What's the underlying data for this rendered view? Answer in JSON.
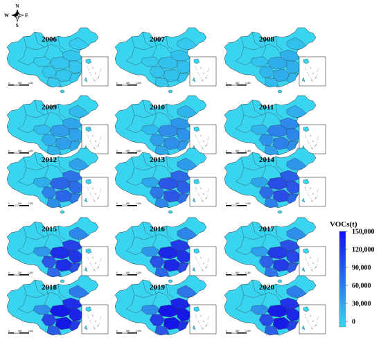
{
  "compass": {
    "north": "N",
    "south": "S",
    "east": "E",
    "west": "W"
  },
  "scale_bar_labels": [
    "0",
    "500",
    "1,000"
  ],
  "legend": {
    "title": "VOCs(t)",
    "ticks": [
      "150,000",
      "120,000",
      "90,000",
      "60,000",
      "30,000",
      "0"
    ],
    "color_low": "#38d4f0",
    "color_high": "#1212e8"
  },
  "colors": {
    "base": "#38d4f0",
    "light": "#2fb5ec",
    "mid": "#2e86ea",
    "dark": "#2a4fe6",
    "darkest": "#1515e6",
    "border": "#333333"
  },
  "panels": [
    {
      "year": "2006",
      "level": 0.1
    },
    {
      "year": "2007",
      "level": 0.14
    },
    {
      "year": "2008",
      "level": 0.26
    },
    {
      "year": "2009",
      "level": 0.32
    },
    {
      "year": "2010",
      "level": 0.4
    },
    {
      "year": "2011",
      "level": 0.46
    },
    {
      "year": "2012",
      "level": 0.56
    },
    {
      "year": "2013",
      "level": 0.62
    },
    {
      "year": "2014",
      "level": 0.66
    },
    {
      "year": "2015",
      "level": 0.78
    },
    {
      "year": "2016",
      "level": 0.8
    },
    {
      "year": "2017",
      "level": 0.72
    },
    {
      "year": "2018",
      "level": 0.86
    },
    {
      "year": "2019",
      "level": 0.9
    },
    {
      "year": "2020",
      "level": 0.84
    }
  ]
}
